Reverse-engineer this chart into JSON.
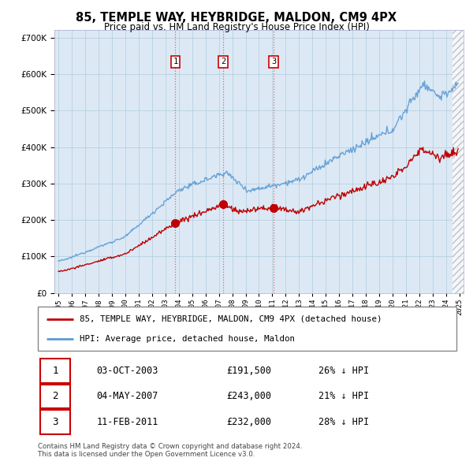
{
  "title": "85, TEMPLE WAY, HEYBRIDGE, MALDON, CM9 4PX",
  "subtitle": "Price paid vs. HM Land Registry's House Price Index (HPI)",
  "legend_label_red": "85, TEMPLE WAY, HEYBRIDGE, MALDON, CM9 4PX (detached house)",
  "legend_label_blue": "HPI: Average price, detached house, Maldon",
  "footer_line1": "Contains HM Land Registry data © Crown copyright and database right 2024.",
  "footer_line2": "This data is licensed under the Open Government Licence v3.0.",
  "transactions": [
    {
      "num": 1,
      "date": "03-OCT-2003",
      "price": 191500,
      "pct": "26%",
      "year_x": 2003.75
    },
    {
      "num": 2,
      "date": "04-MAY-2007",
      "price": 243000,
      "pct": "21%",
      "year_x": 2007.33
    },
    {
      "num": 3,
      "date": "11-FEB-2011",
      "price": 232000,
      "pct": "28%",
      "year_x": 2011.1
    }
  ],
  "ylim": [
    0,
    720000
  ],
  "yticks": [
    0,
    100000,
    200000,
    300000,
    400000,
    500000,
    600000,
    700000
  ],
  "xlim_start": 1994.7,
  "xlim_end": 2025.3,
  "hpi_color": "#5b9bd5",
  "price_color": "#c00000",
  "marker_color_red": "#c00000",
  "transaction_line_color": "#e06060",
  "background_color": "#ffffff",
  "chart_bg_color": "#dce9f5",
  "grid_color": "#b8cfe0"
}
